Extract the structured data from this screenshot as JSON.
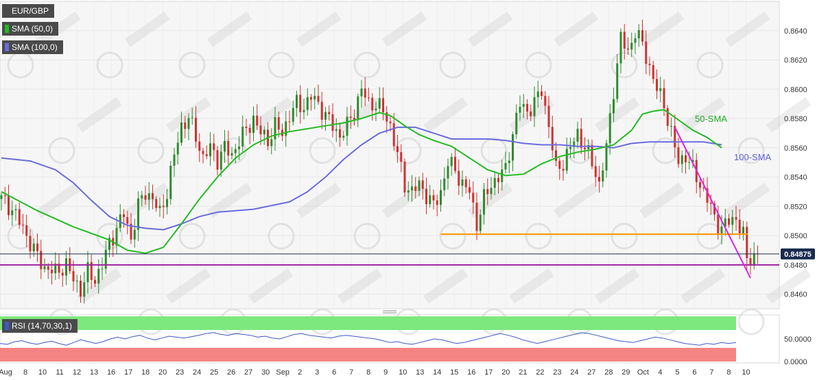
{
  "chart_data": [
    {
      "type": "candlestick",
      "symbol": "EUR/GBP",
      "legend": [
        "EUR/GBP",
        "SMA (50,0)",
        "SMA (100,0)"
      ],
      "ylim": [
        0.845,
        0.866
      ],
      "y_ticks": [
        "0.8460",
        "0.8480",
        "0.8500",
        "0.8520",
        "0.8540",
        "0.8560",
        "0.8580",
        "0.8600",
        "0.8620",
        "0.8640"
      ],
      "x_ticks": [
        "Aug",
        "8",
        "10",
        "11",
        "12",
        "13",
        "16",
        "17",
        "18",
        "20",
        "23",
        "24",
        "25",
        "26",
        "27",
        "30",
        "Sep",
        "2",
        "3",
        "6",
        "7",
        "8",
        "9",
        "10",
        "13",
        "14",
        "15",
        "16",
        "17",
        "20",
        "21",
        "22",
        "23",
        "24",
        "27",
        "28",
        "29",
        "Oct",
        "4",
        "5",
        "6",
        "7",
        "8",
        "10"
      ],
      "price_label": "0.84875",
      "annotations": [
        "50-SMA",
        "100-SMA"
      ],
      "close_path": [
        [
          0,
          0.8525
        ],
        [
          3,
          0.8518
        ],
        [
          6,
          0.8505
        ],
        [
          9,
          0.849
        ],
        [
          12,
          0.8478
        ],
        [
          15,
          0.8475
        ],
        [
          18,
          0.848
        ],
        [
          20,
          0.847
        ],
        [
          22,
          0.8463
        ],
        [
          24,
          0.8475
        ],
        [
          26,
          0.847
        ],
        [
          28,
          0.848
        ],
        [
          30,
          0.8495
        ],
        [
          32,
          0.8505
        ],
        [
          34,
          0.8515
        ],
        [
          36,
          0.8498
        ],
        [
          38,
          0.852
        ],
        [
          40,
          0.853
        ],
        [
          42,
          0.8525
        ],
        [
          44,
          0.8515
        ],
        [
          46,
          0.853
        ],
        [
          48,
          0.8555
        ],
        [
          50,
          0.8575
        ],
        [
          52,
          0.858
        ],
        [
          54,
          0.8568
        ],
        [
          56,
          0.8553
        ],
        [
          58,
          0.856
        ],
        [
          60,
          0.8552
        ],
        [
          62,
          0.856
        ],
        [
          64,
          0.8555
        ],
        [
          66,
          0.8565
        ],
        [
          68,
          0.8572
        ],
        [
          70,
          0.858
        ],
        [
          72,
          0.857
        ],
        [
          74,
          0.8565
        ],
        [
          76,
          0.8575
        ],
        [
          78,
          0.857
        ],
        [
          80,
          0.8582
        ],
        [
          82,
          0.859
        ],
        [
          84,
          0.8588
        ],
        [
          86,
          0.8595
        ],
        [
          88,
          0.859
        ],
        [
          90,
          0.8582
        ],
        [
          92,
          0.8575
        ],
        [
          94,
          0.8568
        ],
        [
          96,
          0.8575
        ],
        [
          98,
          0.8585
        ],
        [
          100,
          0.86
        ],
        [
          102,
          0.859
        ],
        [
          104,
          0.859
        ],
        [
          106,
          0.8585
        ],
        [
          108,
          0.8575
        ],
        [
          110,
          0.8555
        ],
        [
          112,
          0.8535
        ],
        [
          114,
          0.853
        ],
        [
          116,
          0.8535
        ],
        [
          118,
          0.8528
        ],
        [
          120,
          0.852
        ],
        [
          122,
          0.853
        ],
        [
          124,
          0.855
        ],
        [
          126,
          0.8545
        ],
        [
          128,
          0.8535
        ],
        [
          130,
          0.853
        ],
        [
          132,
          0.8508
        ],
        [
          134,
          0.8525
        ],
        [
          136,
          0.8535
        ],
        [
          138,
          0.854
        ],
        [
          140,
          0.8545
        ],
        [
          142,
          0.857
        ],
        [
          144,
          0.859
        ],
        [
          146,
          0.8585
        ],
        [
          148,
          0.859
        ],
        [
          150,
          0.86
        ],
        [
          152,
          0.8575
        ],
        [
          154,
          0.8545
        ],
        [
          156,
          0.855
        ],
        [
          158,
          0.856
        ],
        [
          160,
          0.857
        ],
        [
          162,
          0.856
        ],
        [
          164,
          0.855
        ],
        [
          166,
          0.8535
        ],
        [
          168,
          0.856
        ],
        [
          170,
          0.86
        ],
        [
          172,
          0.8635
        ],
        [
          174,
          0.8625
        ],
        [
          176,
          0.864
        ],
        [
          178,
          0.863
        ],
        [
          180,
          0.8615
        ],
        [
          182,
          0.86
        ],
        [
          184,
          0.859
        ],
        [
          186,
          0.857
        ],
        [
          188,
          0.855
        ],
        [
          190,
          0.8555
        ],
        [
          192,
          0.8545
        ],
        [
          194,
          0.8535
        ],
        [
          196,
          0.8525
        ],
        [
          198,
          0.8512
        ],
        [
          200,
          0.8505
        ],
        [
          202,
          0.851
        ],
        [
          204,
          0.8512
        ],
        [
          206,
          0.85
        ],
        [
          207,
          0.8483
        ],
        [
          208,
          0.8485
        ],
        [
          209,
          0.8486
        ],
        [
          210,
          0.8488
        ]
      ],
      "sma50": [
        [
          0,
          0.853
        ],
        [
          10,
          0.8517
        ],
        [
          20,
          0.8506
        ],
        [
          30,
          0.8497
        ],
        [
          35,
          0.849
        ],
        [
          40,
          0.8488
        ],
        [
          45,
          0.8492
        ],
        [
          50,
          0.8508
        ],
        [
          55,
          0.8525
        ],
        [
          60,
          0.854
        ],
        [
          65,
          0.8553
        ],
        [
          70,
          0.8562
        ],
        [
          75,
          0.8568
        ],
        [
          80,
          0.8571
        ],
        [
          85,
          0.8573
        ],
        [
          90,
          0.8575
        ],
        [
          95,
          0.8577
        ],
        [
          100,
          0.858
        ],
        [
          105,
          0.8584
        ],
        [
          108,
          0.8582
        ],
        [
          112,
          0.8575
        ],
        [
          116,
          0.8569
        ],
        [
          120,
          0.8565
        ],
        [
          125,
          0.8561
        ],
        [
          130,
          0.8553
        ],
        [
          135,
          0.8545
        ],
        [
          140,
          0.8541
        ],
        [
          145,
          0.8542
        ],
        [
          150,
          0.8549
        ],
        [
          155,
          0.8554
        ],
        [
          160,
          0.8557
        ],
        [
          165,
          0.8559
        ],
        [
          170,
          0.8562
        ],
        [
          175,
          0.8572
        ],
        [
          178,
          0.8583
        ],
        [
          181,
          0.8585
        ],
        [
          184,
          0.8586
        ],
        [
          188,
          0.8579
        ],
        [
          192,
          0.8572
        ],
        [
          196,
          0.8567
        ],
        [
          200,
          0.856
        ]
      ],
      "sma100": [
        [
          0,
          0.8553
        ],
        [
          8,
          0.8551
        ],
        [
          15,
          0.8545
        ],
        [
          20,
          0.8536
        ],
        [
          25,
          0.8524
        ],
        [
          30,
          0.8513
        ],
        [
          35,
          0.8507
        ],
        [
          40,
          0.8505
        ],
        [
          45,
          0.8504
        ],
        [
          50,
          0.8508
        ],
        [
          55,
          0.8513
        ],
        [
          60,
          0.8516
        ],
        [
          70,
          0.8518
        ],
        [
          80,
          0.8523
        ],
        [
          85,
          0.853
        ],
        [
          90,
          0.854
        ],
        [
          95,
          0.8552
        ],
        [
          100,
          0.8562
        ],
        [
          105,
          0.857
        ],
        [
          110,
          0.8574
        ],
        [
          115,
          0.8574
        ],
        [
          120,
          0.857
        ],
        [
          125,
          0.8566
        ],
        [
          130,
          0.8566
        ],
        [
          135,
          0.8566
        ],
        [
          140,
          0.8565
        ],
        [
          145,
          0.8563
        ],
        [
          150,
          0.8562
        ],
        [
          155,
          0.8562
        ],
        [
          160,
          0.8561
        ],
        [
          165,
          0.8561
        ],
        [
          170,
          0.856
        ],
        [
          175,
          0.8563
        ],
        [
          180,
          0.8564
        ],
        [
          185,
          0.8564
        ],
        [
          190,
          0.8564
        ],
        [
          195,
          0.8564
        ],
        [
          200,
          0.8562
        ]
      ],
      "support_line": {
        "value": 0.848,
        "color": "#a020a0"
      },
      "resistance_line": {
        "value": 0.8501,
        "start_index": 122,
        "color": "#ff9900"
      },
      "trendline": {
        "from": [
          187,
          0.8574
        ],
        "to": [
          208,
          0.8471
        ],
        "color": "#e020e0"
      },
      "colors": {
        "up": "#2e8b2e",
        "down": "#d03030",
        "sma50": "#22bb22",
        "sma100": "#6a6ae0",
        "price_tag": "#1b2b50"
      }
    },
    {
      "type": "line",
      "name": "RSI (14,70,30,1)",
      "y_ticks": [
        "0.0000",
        "50.0000"
      ],
      "values": [
        40,
        38,
        44,
        46,
        41,
        38,
        42,
        45,
        40,
        36,
        42,
        48,
        44,
        40,
        44,
        50,
        54,
        50,
        55,
        58,
        52,
        48,
        52,
        56,
        54,
        52,
        55,
        58,
        62,
        64,
        60,
        58,
        62,
        60,
        58,
        54,
        56,
        52,
        50,
        55,
        60,
        62,
        58,
        56,
        54,
        52,
        56,
        58,
        56,
        54,
        52,
        50,
        46,
        42,
        44,
        40,
        38,
        42,
        46,
        50,
        48,
        44,
        40,
        42,
        46,
        50,
        54,
        58,
        62,
        58,
        54,
        48,
        44,
        40,
        44,
        48,
        52,
        56,
        60,
        64,
        62,
        58,
        54,
        50,
        46,
        44,
        42,
        46,
        50,
        54,
        52,
        48,
        44,
        40,
        38,
        36,
        40,
        38,
        42,
        40,
        42
      ],
      "colors": {
        "line": "#3d57c9",
        "overbought": "#7de87d",
        "oversold": "#f48484"
      }
    }
  ]
}
